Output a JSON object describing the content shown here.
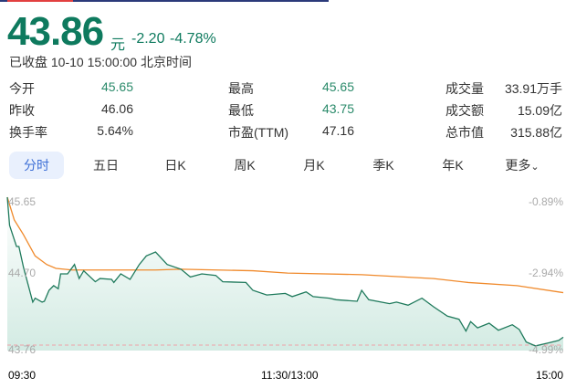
{
  "quote": {
    "price": "43.86",
    "unit": "元",
    "change": "-2.20",
    "change_pct": "-4.78%",
    "status": "已收盘 10-10 15:00:00 北京时间"
  },
  "colors": {
    "down": "#0e7a5e",
    "price_line": "#1f7a5c",
    "avg_line": "#f08a2c",
    "tab_active": "#3d6fd6",
    "close_dash": "#f0a0a8"
  },
  "stats": [
    {
      "label": "今开",
      "value": "45.65",
      "color": "#2a8a6a"
    },
    {
      "label": "昨收",
      "value": "46.06",
      "color": "#333"
    },
    {
      "label": "换手率",
      "value": "5.64%",
      "color": "#333"
    },
    {
      "label": "最高",
      "value": "45.65",
      "color": "#2a8a6a"
    },
    {
      "label": "最低",
      "value": "43.75",
      "color": "#2a8a6a"
    },
    {
      "label": "市盈(TTM)",
      "value": "47.16",
      "color": "#333"
    },
    {
      "label": "成交量",
      "value": "33.91万手",
      "color": "#333"
    },
    {
      "label": "成交额",
      "value": "15.09亿",
      "color": "#333"
    },
    {
      "label": "总市值",
      "value": "315.88亿",
      "color": "#333"
    }
  ],
  "tabs": [
    {
      "label": "分时",
      "active": true
    },
    {
      "label": "五日"
    },
    {
      "label": "日K"
    },
    {
      "label": "周K"
    },
    {
      "label": "月K"
    },
    {
      "label": "季K"
    },
    {
      "label": "年K"
    },
    {
      "label": "更多"
    }
  ],
  "chart_data": {
    "type": "line",
    "ylim": [
      43.76,
      45.65
    ],
    "prev_close": 46.06,
    "y_ticks_left": [
      "45.65",
      "44.70",
      "43.76"
    ],
    "y_ticks_right": [
      "-0.89%",
      "-2.94%",
      "-4.99%"
    ],
    "x_ticks": [
      "09:30",
      "11:30/13:00",
      "15:00"
    ],
    "series": [
      {
        "key": "price",
        "points": [
          [
            "09:30",
            45.65
          ],
          [
            "09:31",
            45.29
          ],
          [
            "09:34",
            45.02
          ],
          [
            "09:35",
            45.02
          ],
          [
            "09:37",
            44.75
          ],
          [
            "09:41",
            44.31
          ],
          [
            "09:42",
            44.36
          ],
          [
            "09:45",
            44.31
          ],
          [
            "09:46",
            44.32
          ],
          [
            "09:48",
            44.46
          ],
          [
            "09:50",
            44.52
          ],
          [
            "09:52",
            44.48
          ],
          [
            "09:53",
            44.67
          ],
          [
            "09:56",
            44.67
          ],
          [
            "09:59",
            44.79
          ],
          [
            "10:01",
            44.61
          ],
          [
            "10:03",
            44.71
          ],
          [
            "10:08",
            44.57
          ],
          [
            "10:10",
            44.61
          ],
          [
            "10:15",
            44.6
          ],
          [
            "10:16",
            44.56
          ],
          [
            "10:19",
            44.67
          ],
          [
            "10:23",
            44.6
          ],
          [
            "10:27",
            44.79
          ],
          [
            "10:30",
            44.9
          ],
          [
            "10:34",
            44.95
          ],
          [
            "10:39",
            44.79
          ],
          [
            "10:45",
            44.73
          ],
          [
            "10:49",
            44.63
          ],
          [
            "10:54",
            44.67
          ],
          [
            "11:00",
            44.65
          ],
          [
            "11:03",
            44.57
          ],
          [
            "11:13",
            44.56
          ],
          [
            "11:16",
            44.46
          ],
          [
            "11:22",
            44.4
          ],
          [
            "11:30",
            44.42
          ],
          [
            "13:03",
            44.38
          ],
          [
            "13:09",
            44.44
          ],
          [
            "13:12",
            44.38
          ],
          [
            "13:19",
            44.36
          ],
          [
            "13:22",
            44.34
          ],
          [
            "13:31",
            44.32
          ],
          [
            "13:33",
            44.46
          ],
          [
            "13:36",
            44.34
          ],
          [
            "13:45",
            44.29
          ],
          [
            "13:48",
            44.31
          ],
          [
            "13:53",
            44.27
          ],
          [
            "13:59",
            44.36
          ],
          [
            "14:04",
            44.25
          ],
          [
            "14:10",
            44.13
          ],
          [
            "14:15",
            44.09
          ],
          [
            "14:18",
            43.94
          ],
          [
            "14:20",
            44.06
          ],
          [
            "14:23",
            43.98
          ],
          [
            "14:28",
            44.04
          ],
          [
            "14:32",
            43.95
          ],
          [
            "14:38",
            44.02
          ],
          [
            "14:41",
            43.96
          ],
          [
            "14:44",
            43.8
          ],
          [
            "14:48",
            43.75
          ],
          [
            "14:54",
            43.79
          ],
          [
            "14:58",
            43.82
          ],
          [
            "15:00",
            43.86
          ]
        ]
      },
      {
        "key": "avg",
        "points": [
          [
            "09:30",
            45.65
          ],
          [
            "09:33",
            45.36
          ],
          [
            "09:37",
            45.17
          ],
          [
            "09:42",
            44.9
          ],
          [
            "09:47",
            44.79
          ],
          [
            "09:51",
            44.74
          ],
          [
            "09:58",
            44.72
          ],
          [
            "10:34",
            44.72
          ],
          [
            "10:45",
            44.73
          ],
          [
            "11:16",
            44.71
          ],
          [
            "13:01",
            44.68
          ],
          [
            "13:33",
            44.66
          ],
          [
            "14:04",
            44.61
          ],
          [
            "14:19",
            44.56
          ],
          [
            "14:40",
            44.52
          ],
          [
            "15:00",
            44.43
          ]
        ]
      }
    ]
  }
}
